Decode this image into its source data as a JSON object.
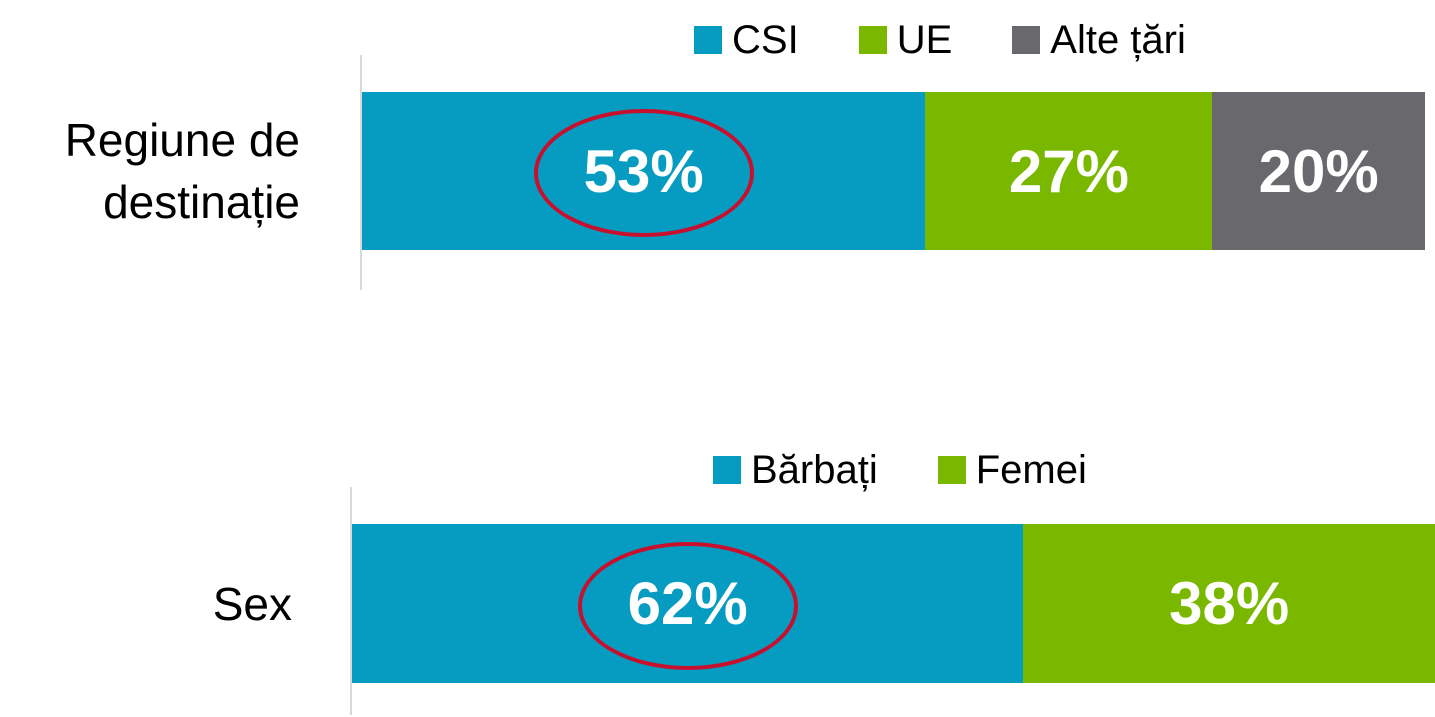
{
  "chart_data": [
    {
      "type": "stacked-bar",
      "categories": [
        "Regiune de destinație"
      ],
      "series": [
        {
          "name": "CSI",
          "color": "#069BC0",
          "values": [
            53
          ],
          "value_labels": [
            "53%"
          ]
        },
        {
          "name": "UE",
          "color": "#7AB800",
          "values": [
            27
          ],
          "value_labels": [
            "27%"
          ]
        },
        {
          "name": "Alte țări",
          "color": "#68686D",
          "values": [
            20
          ],
          "value_labels": [
            "20%"
          ]
        }
      ]
    },
    {
      "type": "stacked-bar",
      "categories": [
        "Sex"
      ],
      "series": [
        {
          "name": "Bărbați",
          "color": "#069BC0",
          "values": [
            62
          ],
          "value_labels": [
            "62%"
          ]
        },
        {
          "name": "Femei",
          "color": "#7AB800",
          "values": [
            38
          ],
          "value_labels": [
            "38%"
          ]
        }
      ]
    }
  ]
}
